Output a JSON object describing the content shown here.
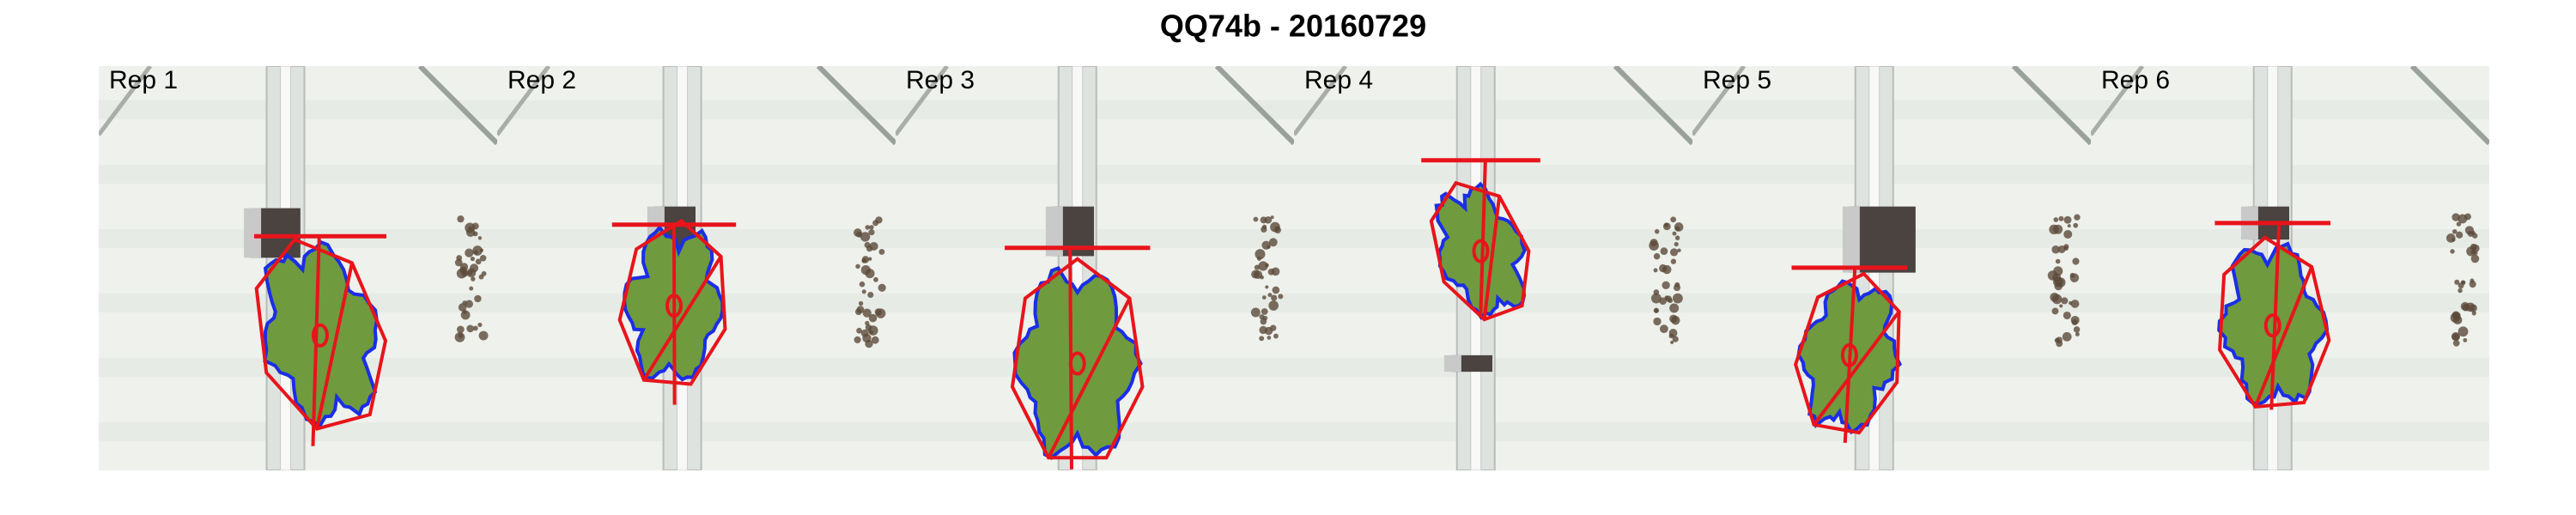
{
  "title": "QQ74b - 20160729",
  "panels": [
    {
      "label": "Rep 1"
    },
    {
      "label": "Rep 2"
    },
    {
      "label": "Rep 3"
    },
    {
      "label": "Rep 4"
    },
    {
      "label": "Rep 5"
    },
    {
      "label": "Rep 6"
    }
  ]
}
